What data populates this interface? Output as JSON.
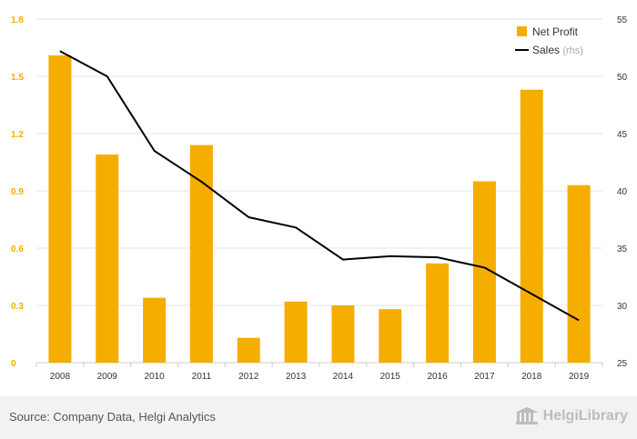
{
  "chart_data": {
    "type": "bar+line",
    "categories": [
      "2008",
      "2009",
      "2010",
      "2011",
      "2012",
      "2013",
      "2014",
      "2015",
      "2016",
      "2017",
      "2018",
      "2019"
    ],
    "series": [
      {
        "name": "Net Profit",
        "type": "bar",
        "axis": "left",
        "color": "#f5ad00",
        "values": [
          1.61,
          1.09,
          0.34,
          1.14,
          0.13,
          0.32,
          0.3,
          0.28,
          0.52,
          0.95,
          1.43,
          0.93
        ]
      },
      {
        "name": "Sales",
        "type": "line",
        "axis": "right",
        "color": "#000000",
        "values": [
          52.2,
          50.0,
          43.5,
          40.8,
          37.7,
          36.8,
          34.0,
          34.3,
          34.2,
          33.3,
          31.0,
          28.7
        ]
      }
    ],
    "y_left": {
      "ylim": [
        0,
        1.8
      ],
      "ticks": [
        "0",
        "0.3",
        "0.6",
        "0.9",
        "1.2",
        "1.5",
        "1.8"
      ],
      "tick_color": "#f5ad00"
    },
    "y_right": {
      "ylim": [
        25,
        55
      ],
      "ticks": [
        "25",
        "30",
        "35",
        "40",
        "45",
        "50",
        "55"
      ]
    },
    "legend": {
      "position": "top-right",
      "items": [
        {
          "label": "Net Profit",
          "suffix": ""
        },
        {
          "label": "Sales",
          "suffix": "(rhs)"
        }
      ]
    },
    "grid": true
  },
  "footer": {
    "source": "Source: Company Data, Helgi Analytics",
    "brand": "HelgiLibrary"
  }
}
